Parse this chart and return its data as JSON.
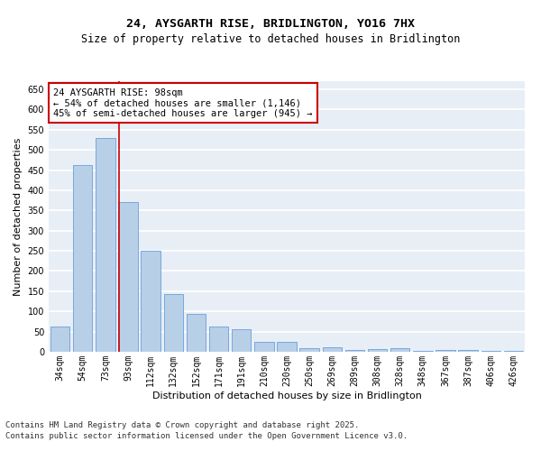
{
  "title_line1": "24, AYSGARTH RISE, BRIDLINGTON, YO16 7HX",
  "title_line2": "Size of property relative to detached houses in Bridlington",
  "xlabel": "Distribution of detached houses by size in Bridlington",
  "ylabel": "Number of detached properties",
  "categories": [
    "34sqm",
    "54sqm",
    "73sqm",
    "93sqm",
    "112sqm",
    "132sqm",
    "152sqm",
    "171sqm",
    "191sqm",
    "210sqm",
    "230sqm",
    "250sqm",
    "269sqm",
    "289sqm",
    "308sqm",
    "328sqm",
    "348sqm",
    "367sqm",
    "387sqm",
    "406sqm",
    "426sqm"
  ],
  "values": [
    62,
    462,
    530,
    370,
    250,
    142,
    93,
    62,
    55,
    25,
    25,
    10,
    11,
    5,
    6,
    8,
    3,
    4,
    5,
    3,
    3
  ],
  "bar_color": "#b8cfe8",
  "bar_edge_color": "#6a9fd8",
  "background_color": "#e8eef6",
  "grid_color": "#ffffff",
  "vline_color": "#cc0000",
  "annotation_text": "24 AYSGARTH RISE: 98sqm\n← 54% of detached houses are smaller (1,146)\n45% of semi-detached houses are larger (945) →",
  "annotation_box_color": "#ffffff",
  "annotation_box_edge": "#cc0000",
  "ylim": [
    0,
    670
  ],
  "yticks": [
    0,
    50,
    100,
    150,
    200,
    250,
    300,
    350,
    400,
    450,
    500,
    550,
    600,
    650
  ],
  "footnote": "Contains HM Land Registry data © Crown copyright and database right 2025.\nContains public sector information licensed under the Open Government Licence v3.0.",
  "title_fontsize": 9.5,
  "subtitle_fontsize": 8.5,
  "axis_label_fontsize": 8,
  "tick_fontsize": 7,
  "annotation_fontsize": 7.5,
  "footnote_fontsize": 6.5
}
